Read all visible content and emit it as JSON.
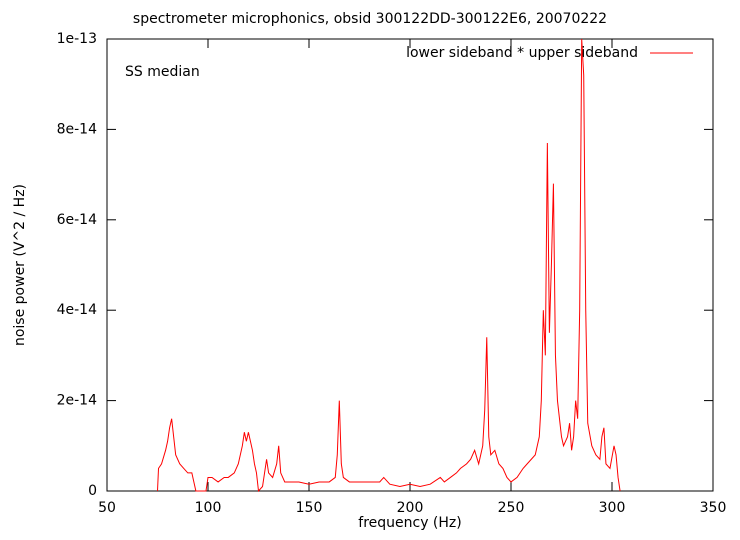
{
  "chart_data": {
    "type": "line",
    "title": "spectrometer microphonics, obsid 300122DD-300122E6, 20070222",
    "xlabel": "frequency (Hz)",
    "ylabel": "noise power (V^2 / Hz)",
    "annotation": "SS median",
    "legend_position": "upper right",
    "xlim": [
      50,
      350
    ],
    "xticks": [
      50,
      100,
      150,
      200,
      250,
      300,
      350
    ],
    "ylim": [
      0,
      1e-13
    ],
    "yticks": [
      0,
      2e-14,
      4e-14,
      6e-14,
      8e-14,
      1e-13
    ],
    "x": [
      75,
      75.5,
      77,
      79,
      80,
      81,
      82,
      83,
      84,
      86,
      88,
      90,
      92,
      93,
      94,
      95,
      99,
      100,
      102,
      105,
      108,
      110,
      113,
      115,
      117,
      118,
      119,
      120,
      121,
      122,
      123,
      124,
      125,
      127,
      128,
      129,
      130,
      132,
      134,
      135,
      136,
      138,
      140,
      145,
      150,
      155,
      160,
      163,
      164,
      165,
      166,
      167,
      170,
      175,
      180,
      185,
      187,
      190,
      195,
      200,
      205,
      210,
      215,
      217,
      220,
      223,
      225,
      228,
      230,
      232,
      234,
      235,
      236,
      237,
      238,
      239,
      240,
      242,
      244,
      246,
      248,
      250,
      253,
      256,
      258,
      260,
      262,
      264,
      265,
      266,
      267,
      268,
      269,
      270,
      271,
      272,
      273,
      275,
      276,
      278,
      279,
      280,
      281,
      282,
      283,
      284,
      285,
      286,
      287,
      288,
      290,
      292,
      294,
      295,
      296,
      297,
      299,
      301,
      302,
      303,
      304
    ],
    "series": [
      {
        "name": "lower sideband * upper sideband",
        "color": "#ff0000",
        "values": [
          0,
          5e-15,
          6e-15,
          9e-15,
          1.1e-14,
          1.4e-14,
          1.6e-14,
          1.2e-14,
          8e-15,
          6e-15,
          5e-15,
          4e-15,
          4e-15,
          2e-15,
          0,
          0,
          0,
          3e-15,
          3e-15,
          2e-15,
          3e-15,
          3e-15,
          4e-15,
          6e-15,
          1e-14,
          1.3e-14,
          1.1e-14,
          1.3e-14,
          1.1e-14,
          9e-15,
          6e-15,
          4e-15,
          0,
          1e-15,
          4e-15,
          7e-15,
          4e-15,
          3e-15,
          6e-15,
          1e-14,
          4e-15,
          2e-15,
          2e-15,
          2e-15,
          1.5e-15,
          2e-15,
          2e-15,
          3e-15,
          8e-15,
          2e-14,
          6e-15,
          3e-15,
          2e-15,
          2e-15,
          2e-15,
          2e-15,
          3e-15,
          1.5e-15,
          1e-15,
          1.5e-15,
          1e-15,
          1.5e-15,
          3e-15,
          2e-15,
          3e-15,
          4e-15,
          5e-15,
          6e-15,
          7e-15,
          9e-15,
          6e-15,
          8e-15,
          1e-14,
          1.8e-14,
          3.4e-14,
          1.2e-14,
          8e-15,
          9e-15,
          6e-15,
          5e-15,
          3e-15,
          2e-15,
          3e-15,
          5e-15,
          6e-15,
          7e-15,
          8e-15,
          1.2e-14,
          2e-14,
          4e-14,
          3e-14,
          7.7e-14,
          3.5e-14,
          5e-14,
          6.8e-14,
          3e-14,
          2e-14,
          1.2e-14,
          1e-14,
          1.2e-14,
          1.5e-14,
          9e-15,
          1.2e-14,
          2e-14,
          1.6e-14,
          4e-14,
          1e-13,
          9.2e-14,
          4e-14,
          1.5e-14,
          1e-14,
          8e-15,
          7e-15,
          1.2e-14,
          1.4e-14,
          6e-15,
          5e-15,
          1e-14,
          8e-15,
          3e-15,
          0
        ]
      }
    ]
  }
}
